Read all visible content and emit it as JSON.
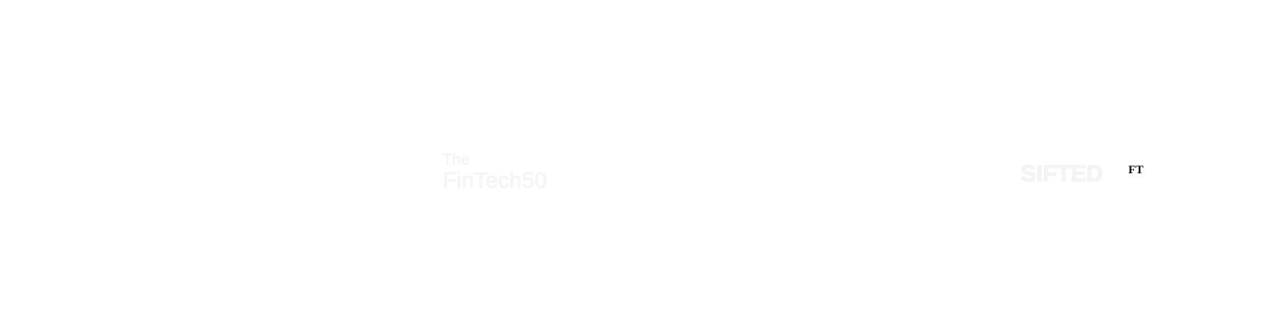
{
  "logos": {
    "left": {
      "line1": "The",
      "line2": "FinTech50"
    },
    "right": {
      "text": "SIFTED"
    },
    "ft_mark": "FT"
  }
}
